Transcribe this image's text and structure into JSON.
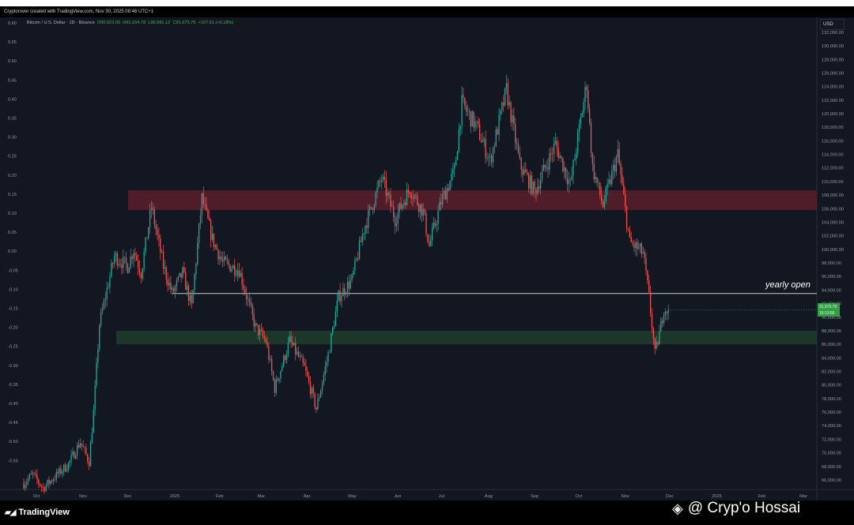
{
  "header": {
    "credit": "Cryptorover created with TradingView.com, Nov 30, 2025 08:46 UTC+1"
  },
  "legend": {
    "symbol": "Bitcoin / U.S. Dollar · 1D · Binance",
    "open": "O90,923.00",
    "high": "H91,154.78",
    "low": "L90,581.12",
    "close": "C91,073.79",
    "change": "+167.51 (+0.18%)"
  },
  "axis": {
    "currency": "USD"
  },
  "price_tag": {
    "price": "91,073.79",
    "countdown": "15:13:56"
  },
  "annotations": {
    "yearly_open": "yearly open"
  },
  "footer": {
    "brand": "TradingView",
    "watermark": "@ Cryp'o Hossai",
    "binance_icon": "binance-square-icon"
  },
  "colors": {
    "up": "#26a69a",
    "up_green": "#4caf50",
    "down": "#ef5350",
    "resistance_zone": "#5a1f2a",
    "support_zone": "#1e3d2a",
    "background": "#131722"
  },
  "chart_data": {
    "type": "candlestick",
    "title": "Bitcoin / U.S. Dollar · 1D · Binance",
    "xlabel": "",
    "ylabel": "",
    "x_ticks": [
      "Oct",
      "Nov",
      "Dec",
      "2025",
      "Feb",
      "Mar",
      "Apr",
      "May",
      "Jun",
      "Jul",
      "Aug",
      "Sep",
      "Oct",
      "Nov",
      "Dec",
      "2026",
      "Feb",
      "Mar"
    ],
    "y_right_ticks": [
      "132,000.00",
      "130,000.00",
      "128,000.00",
      "126,000.00",
      "124,000.00",
      "122,000.00",
      "120,000.00",
      "118,000.00",
      "116,000.00",
      "114,000.00",
      "112,000.00",
      "110,000.00",
      "108,000.00",
      "106,000.00",
      "104,000.00",
      "102,000.00",
      "100,000.00",
      "98,000.00",
      "96,000.00",
      "94,000.00",
      "92,000.00",
      "90,000.00",
      "88,000.00",
      "86,000.00",
      "84,000.00",
      "82,000.00",
      "80,000.00",
      "78,000.00",
      "76,000.00",
      "74,000.00",
      "72,000.00",
      "70,000.00",
      "68,000.00",
      "66,000.00"
    ],
    "y_left_ticks": [
      "0.60",
      "0.55",
      "0.50",
      "0.45",
      "0.40",
      "0.35",
      "0.30",
      "0.25",
      "0.20",
      "0.15",
      "0.10",
      "0.05",
      "0.00",
      "-0.05",
      "-0.10",
      "-0.15",
      "-0.20",
      "-0.25",
      "-0.30",
      "-0.35",
      "-0.40",
      "-0.45",
      "-0.50",
      "-0.55"
    ],
    "ylim": [
      64600,
      134200
    ],
    "date_range": [
      "2024-09-22",
      "2026-03-10"
    ],
    "zones": [
      {
        "type": "resistance",
        "low": 105800,
        "high": 108700
      },
      {
        "type": "support",
        "low": 86000,
        "high": 88000
      }
    ],
    "hlines": [
      {
        "label": "yearly open",
        "value": 93500,
        "from": "2024-12-31"
      }
    ],
    "last_price": 91073.79,
    "anchors": [
      [
        "2024-09-22",
        65500
      ],
      [
        "2024-09-28",
        66800
      ],
      [
        "2024-10-05",
        64800
      ],
      [
        "2024-10-13",
        66500
      ],
      [
        "2024-10-22",
        68300
      ],
      [
        "2024-10-30",
        71600
      ],
      [
        "2024-11-05",
        68700
      ],
      [
        "2024-11-08",
        76000
      ],
      [
        "2024-11-12",
        89000
      ],
      [
        "2024-11-22",
        99000
      ],
      [
        "2024-12-01",
        97500
      ],
      [
        "2024-12-05",
        100000
      ],
      [
        "2024-12-10",
        96500
      ],
      [
        "2024-12-17",
        106200
      ],
      [
        "2024-12-25",
        97500
      ],
      [
        "2024-12-31",
        93500
      ],
      [
        "2025-01-07",
        96500
      ],
      [
        "2025-01-13",
        91500
      ],
      [
        "2025-01-20",
        107500
      ],
      [
        "2025-01-27",
        101500
      ],
      [
        "2025-02-03",
        98000
      ],
      [
        "2025-02-14",
        97000
      ],
      [
        "2025-02-25",
        88500
      ],
      [
        "2025-03-04",
        86500
      ],
      [
        "2025-03-10",
        79500
      ],
      [
        "2025-03-20",
        86500
      ],
      [
        "2025-03-30",
        82500
      ],
      [
        "2025-04-07",
        76500
      ],
      [
        "2025-04-15",
        84500
      ],
      [
        "2025-04-22",
        93000
      ],
      [
        "2025-05-01",
        95500
      ],
      [
        "2025-05-09",
        103000
      ],
      [
        "2025-05-21",
        110500
      ],
      [
        "2025-05-30",
        104500
      ],
      [
        "2025-06-09",
        109000
      ],
      [
        "2025-06-18",
        105500
      ],
      [
        "2025-06-22",
        100500
      ],
      [
        "2025-06-30",
        107000
      ],
      [
        "2025-07-09",
        111500
      ],
      [
        "2025-07-14",
        121500
      ],
      [
        "2025-07-24",
        118000
      ],
      [
        "2025-08-02",
        113000
      ],
      [
        "2025-08-13",
        123500
      ],
      [
        "2025-08-22",
        112500
      ],
      [
        "2025-09-01",
        108500
      ],
      [
        "2025-09-15",
        115500
      ],
      [
        "2025-09-25",
        109500
      ],
      [
        "2025-10-06",
        124500
      ],
      [
        "2025-10-10",
        112000
      ],
      [
        "2025-10-17",
        106500
      ],
      [
        "2025-10-27",
        114000
      ],
      [
        "2025-11-04",
        101000
      ],
      [
        "2025-11-13",
        99500
      ],
      [
        "2025-11-17",
        93000
      ],
      [
        "2025-11-21",
        84500
      ],
      [
        "2025-11-24",
        87500
      ],
      [
        "2025-11-27",
        91300
      ],
      [
        "2025-11-30",
        91073.79
      ]
    ]
  }
}
